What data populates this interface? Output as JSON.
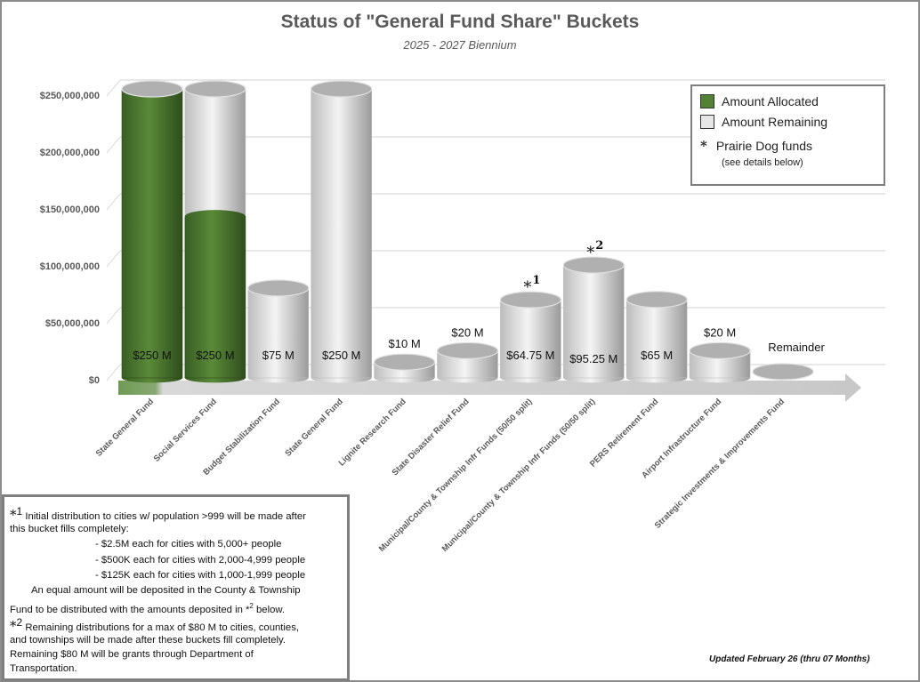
{
  "chart_data": {
    "type": "bar",
    "stacked": true,
    "style": "3d-cylinder",
    "title": "Status of \"General Fund Share\" Buckets",
    "subtitle": "2025 - 2027 Biennium",
    "xlabel": "",
    "ylabel": "",
    "ylim": [
      0,
      250000000
    ],
    "yticks": [
      "$0",
      "$50,000,000",
      "$100,000,000",
      "$150,000,000",
      "$200,000,000",
      "$250,000,000"
    ],
    "ytick_values": [
      0,
      50000000,
      100000000,
      150000000,
      200000000,
      250000000
    ],
    "grid": true,
    "legend_position": "top-right",
    "categories": [
      "State General Fund",
      "Social Services Fund",
      "Budget Stabilization Fund",
      "State General Fund",
      "Lignite Research Fund",
      "State Disaster Relief Fund",
      "Municipal/County & Township Infr Funds (50/50 split)",
      "Municipal/County & Township Infr Funds (50/50 split)",
      "PERS Retirement Fund",
      "Airport Infrastructure Fund",
      "Strategic Investments & Improvements Fund"
    ],
    "series": [
      {
        "name": "Amount Allocated",
        "color": "#548235",
        "values": [
          250000000,
          138000000,
          0,
          0,
          0,
          0,
          0,
          0,
          0,
          0,
          0
        ]
      },
      {
        "name": "Amount Remaining",
        "color": "#e6e6e6",
        "values": [
          0,
          112000000,
          75000000,
          250000000,
          10000000,
          20000000,
          64750000,
          95250000,
          65000000,
          20000000,
          0
        ]
      }
    ],
    "data_labels": [
      "$250 M",
      "$250 M",
      "$75 M",
      "$250 M",
      "$10 M",
      "$20 M",
      "$64.75 M",
      "$95.25 M",
      "$65 M",
      "$20 M",
      "Remainder"
    ],
    "markers": [
      {
        "category_index": 6,
        "text": "*",
        "sup": "1"
      },
      {
        "category_index": 7,
        "text": "*",
        "sup": "2"
      }
    ]
  },
  "legend": {
    "allocated": "Amount Allocated",
    "remaining": "Amount Remaining",
    "prairie_star": "*",
    "prairie": "Prairie Dog funds",
    "prairie_sub": "(see details below)",
    "allocated_color": "#548235",
    "remaining_color": "#e6e6e6"
  },
  "notes": {
    "n1_mark": "*",
    "n1_sup": "1",
    "n1_line1": "Initial distribution to cities w/ population >999 will be made after",
    "n1_line2": "this bucket fills completely:",
    "n1_b1": "- $2.5M each for cities with 5,000+ people",
    "n1_b2": "- $500K each for cities with 2,000-4,999 people",
    "n1_b3": "- $125K each for cities with 1,000-1,999 people",
    "n1_line3": "An equal amount will be deposited in the County & Township",
    "n1_line4a": "Fund to be distributed with the amounts deposited in ",
    "n1_line4_mark": "*",
    "n1_line4_sup": "2",
    "n1_line4b": " below.",
    "n2_mark": "*",
    "n2_sup": "2",
    "n2_line1": "Remaining distributions for a max of $80 M to cities, counties,",
    "n2_line2": "and townships will be made after these buckets fill completely.",
    "n2_line3": "Remaining $80 M will be grants through Department of",
    "n2_line4": "Transportation."
  },
  "updated": "Updated February 26 (thru 07 Months)"
}
